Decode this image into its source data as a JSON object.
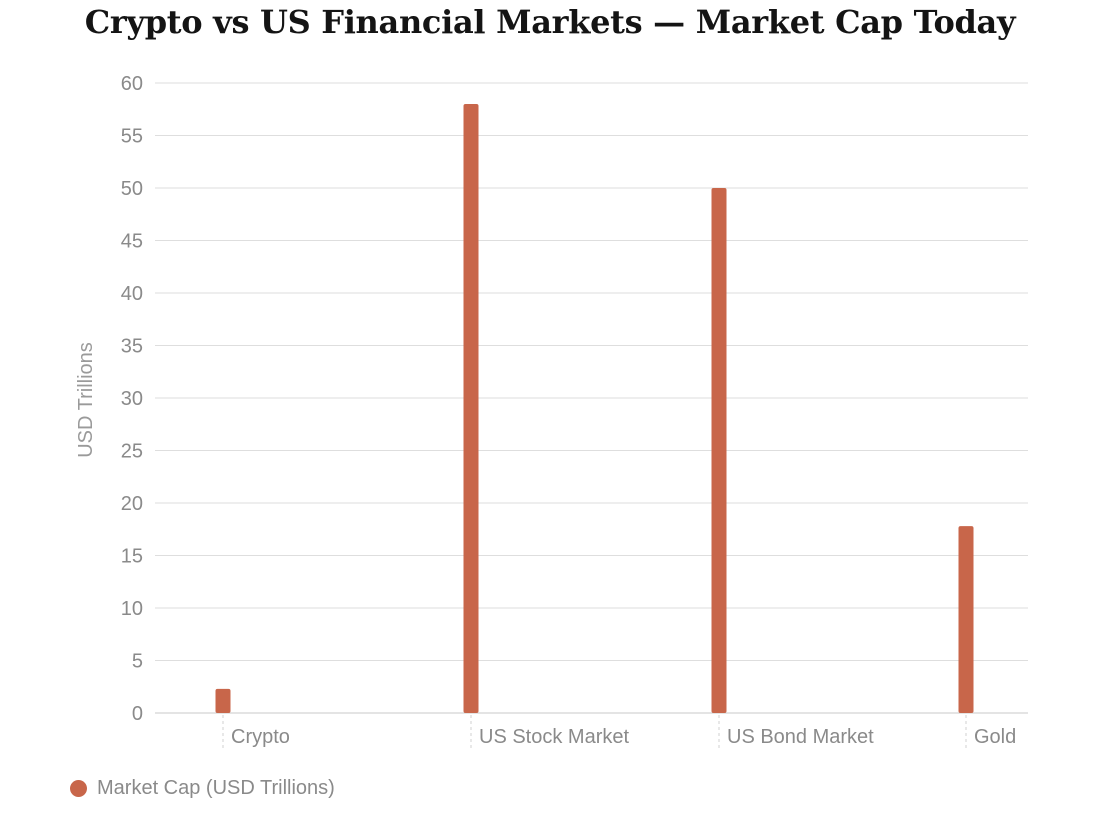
{
  "chart_data": {
    "type": "bar",
    "title": "Crypto vs US Financial Markets — Market Cap Today",
    "xlabel": "",
    "ylabel": "USD Trillions",
    "ylim": [
      0,
      60
    ],
    "yticks": [
      0,
      5,
      10,
      15,
      20,
      25,
      30,
      35,
      40,
      45,
      50,
      55,
      60
    ],
    "grid": true,
    "legend_position": "bottom-left",
    "categories": [
      "Crypto",
      "US Stock Market",
      "US Bond Market",
      "Gold"
    ],
    "series": [
      {
        "name": "Market Cap (USD Trillions)",
        "color": "#c8664a",
        "values": [
          2.3,
          58,
          50,
          17.8
        ]
      }
    ]
  }
}
